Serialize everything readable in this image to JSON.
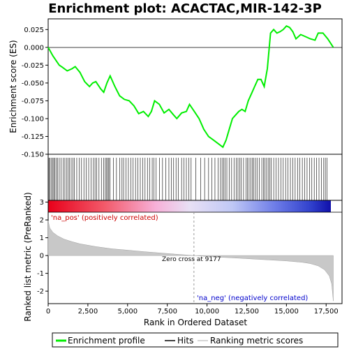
{
  "chart_data": {
    "type": "line",
    "title": "Enrichment plot: ACACTAC,MIR-142-3P",
    "es_panel": {
      "ylabel": "Enrichment score (ES)",
      "ylim": [
        -0.15,
        0.04
      ],
      "yticks": [
        0.025,
        0.0,
        -0.025,
        -0.05,
        -0.075,
        -0.1,
        -0.125,
        -0.15
      ],
      "ytick_labels": [
        "0.025",
        "0.000",
        "-0.025",
        "-0.050",
        "-0.075",
        "-0.100",
        "-0.125",
        "-0.150"
      ],
      "series_name": "Enrichment profile",
      "color": "#00ee00",
      "points": [
        [
          0,
          0.0
        ],
        [
          300,
          -0.012
        ],
        [
          700,
          -0.025
        ],
        [
          900,
          -0.028
        ],
        [
          1200,
          -0.033
        ],
        [
          1500,
          -0.03
        ],
        [
          1700,
          -0.027
        ],
        [
          2000,
          -0.035
        ],
        [
          2300,
          -0.048
        ],
        [
          2600,
          -0.055
        ],
        [
          2800,
          -0.05
        ],
        [
          3000,
          -0.048
        ],
        [
          3300,
          -0.058
        ],
        [
          3500,
          -0.063
        ],
        [
          3700,
          -0.05
        ],
        [
          3900,
          -0.04
        ],
        [
          4200,
          -0.055
        ],
        [
          4500,
          -0.068
        ],
        [
          4800,
          -0.073
        ],
        [
          5100,
          -0.075
        ],
        [
          5400,
          -0.082
        ],
        [
          5700,
          -0.093
        ],
        [
          6000,
          -0.09
        ],
        [
          6300,
          -0.097
        ],
        [
          6500,
          -0.09
        ],
        [
          6700,
          -0.075
        ],
        [
          7000,
          -0.08
        ],
        [
          7300,
          -0.092
        ],
        [
          7600,
          -0.087
        ],
        [
          7900,
          -0.095
        ],
        [
          8100,
          -0.1
        ],
        [
          8400,
          -0.092
        ],
        [
          8700,
          -0.09
        ],
        [
          8900,
          -0.08
        ],
        [
          9200,
          -0.09
        ],
        [
          9500,
          -0.1
        ],
        [
          9800,
          -0.115
        ],
        [
          10100,
          -0.125
        ],
        [
          10400,
          -0.13
        ],
        [
          10700,
          -0.135
        ],
        [
          11000,
          -0.14
        ],
        [
          11200,
          -0.13
        ],
        [
          11400,
          -0.115
        ],
        [
          11600,
          -0.1
        ],
        [
          11800,
          -0.095
        ],
        [
          12000,
          -0.09
        ],
        [
          12200,
          -0.087
        ],
        [
          12400,
          -0.09
        ],
        [
          12600,
          -0.075
        ],
        [
          12800,
          -0.065
        ],
        [
          13000,
          -0.055
        ],
        [
          13200,
          -0.045
        ],
        [
          13400,
          -0.045
        ],
        [
          13600,
          -0.055
        ],
        [
          13800,
          -0.03
        ],
        [
          14000,
          0.02
        ],
        [
          14200,
          0.025
        ],
        [
          14400,
          0.02
        ],
        [
          14600,
          0.022
        ],
        [
          14800,
          0.025
        ],
        [
          15000,
          0.03
        ],
        [
          15200,
          0.028
        ],
        [
          15400,
          0.022
        ],
        [
          15600,
          0.012
        ],
        [
          15900,
          0.018
        ],
        [
          16200,
          0.015
        ],
        [
          16500,
          0.012
        ],
        [
          16800,
          0.01
        ],
        [
          17000,
          0.02
        ],
        [
          17300,
          0.02
        ],
        [
          17600,
          0.012
        ],
        [
          17950,
          0.0
        ]
      ]
    },
    "hits_panel": {
      "legend_label": "Hits",
      "hit_positions": [
        50,
        120,
        200,
        280,
        350,
        420,
        500,
        600,
        700,
        820,
        950,
        1050,
        1150,
        1250,
        1350,
        1450,
        1550,
        1650,
        1800,
        1950,
        2100,
        2250,
        2400,
        2550,
        2700,
        2850,
        2950,
        3050,
        3200,
        3350,
        3500,
        3600,
        3680,
        3750,
        3820,
        3900,
        4100,
        4300,
        4500,
        4650,
        4750,
        4900,
        5050,
        5200,
        5350,
        5500,
        5650,
        5800,
        5950,
        6100,
        6250,
        6400,
        6550,
        6650,
        6800,
        7000,
        7200,
        7400,
        7600,
        7750,
        7900,
        8050,
        8200,
        8400,
        8550,
        8700,
        8850,
        9000,
        9300,
        9600,
        9850,
        10100,
        10300,
        10500,
        10700,
        10850,
        10950,
        11050,
        11150,
        11250,
        11400,
        11550,
        11700,
        11850,
        11950,
        12050,
        12150,
        12300,
        12450,
        12550,
        12650,
        12750,
        12850,
        12950,
        13050,
        13150,
        13300,
        13450,
        13550,
        13650,
        13750,
        13850,
        13950,
        14050,
        14200,
        14350,
        14500,
        14650,
        14800,
        14950,
        15100,
        15250,
        15400,
        15550,
        15700,
        15850,
        16000,
        16150,
        16300,
        16450,
        16600,
        16750,
        16900,
        17050,
        17200,
        17350,
        17450,
        17550
      ]
    },
    "metric_panel": {
      "ylabel": "Ranked list metric (PreRanked)",
      "ylim": [
        -2.7,
        3.1
      ],
      "yticks": [
        3,
        2,
        1,
        0,
        -1,
        -2
      ],
      "ytick_labels": [
        "3",
        "2",
        "1",
        "0",
        "-1",
        "-2"
      ],
      "legend_label": "Ranking metric scores",
      "color": "#c8c8c8",
      "points": [
        [
          0,
          1.95
        ],
        [
          100,
          1.55
        ],
        [
          300,
          1.3
        ],
        [
          600,
          1.1
        ],
        [
          1000,
          0.92
        ],
        [
          1500,
          0.78
        ],
        [
          2000,
          0.66
        ],
        [
          3000,
          0.5
        ],
        [
          4000,
          0.38
        ],
        [
          5000,
          0.3
        ],
        [
          6000,
          0.22
        ],
        [
          7000,
          0.15
        ],
        [
          8000,
          0.08
        ],
        [
          9177,
          0.0
        ],
        [
          10000,
          -0.05
        ],
        [
          11000,
          -0.1
        ],
        [
          12000,
          -0.15
        ],
        [
          13000,
          -0.2
        ],
        [
          14000,
          -0.25
        ],
        [
          15000,
          -0.3
        ],
        [
          16000,
          -0.38
        ],
        [
          16500,
          -0.45
        ],
        [
          17000,
          -0.58
        ],
        [
          17400,
          -0.8
        ],
        [
          17700,
          -1.15
        ],
        [
          17850,
          -1.6
        ],
        [
          17950,
          -2.55
        ]
      ],
      "zero_cross_label": "Zero cross at 9177",
      "zero_cross_x": 9177,
      "pos_label": "'na_pos' (positively correlated)",
      "neg_label": "'na_neg' (negatively correlated)"
    },
    "xlabel": "Rank in Ordered Dataset",
    "xlim": [
      0,
      18500
    ],
    "xticks": [
      0,
      2500,
      5000,
      7500,
      10000,
      12500,
      15000,
      17500
    ],
    "xtick_labels": [
      "0",
      "2,500",
      "5,000",
      "7,500",
      "10,000",
      "12,500",
      "15,000",
      "17,500"
    ],
    "legend": [
      {
        "label": "Enrichment profile",
        "color": "#00ee00"
      },
      {
        "label": "Hits",
        "color": "#000000"
      },
      {
        "label": "Ranking metric scores",
        "color": "#c8c8c8"
      }
    ]
  }
}
